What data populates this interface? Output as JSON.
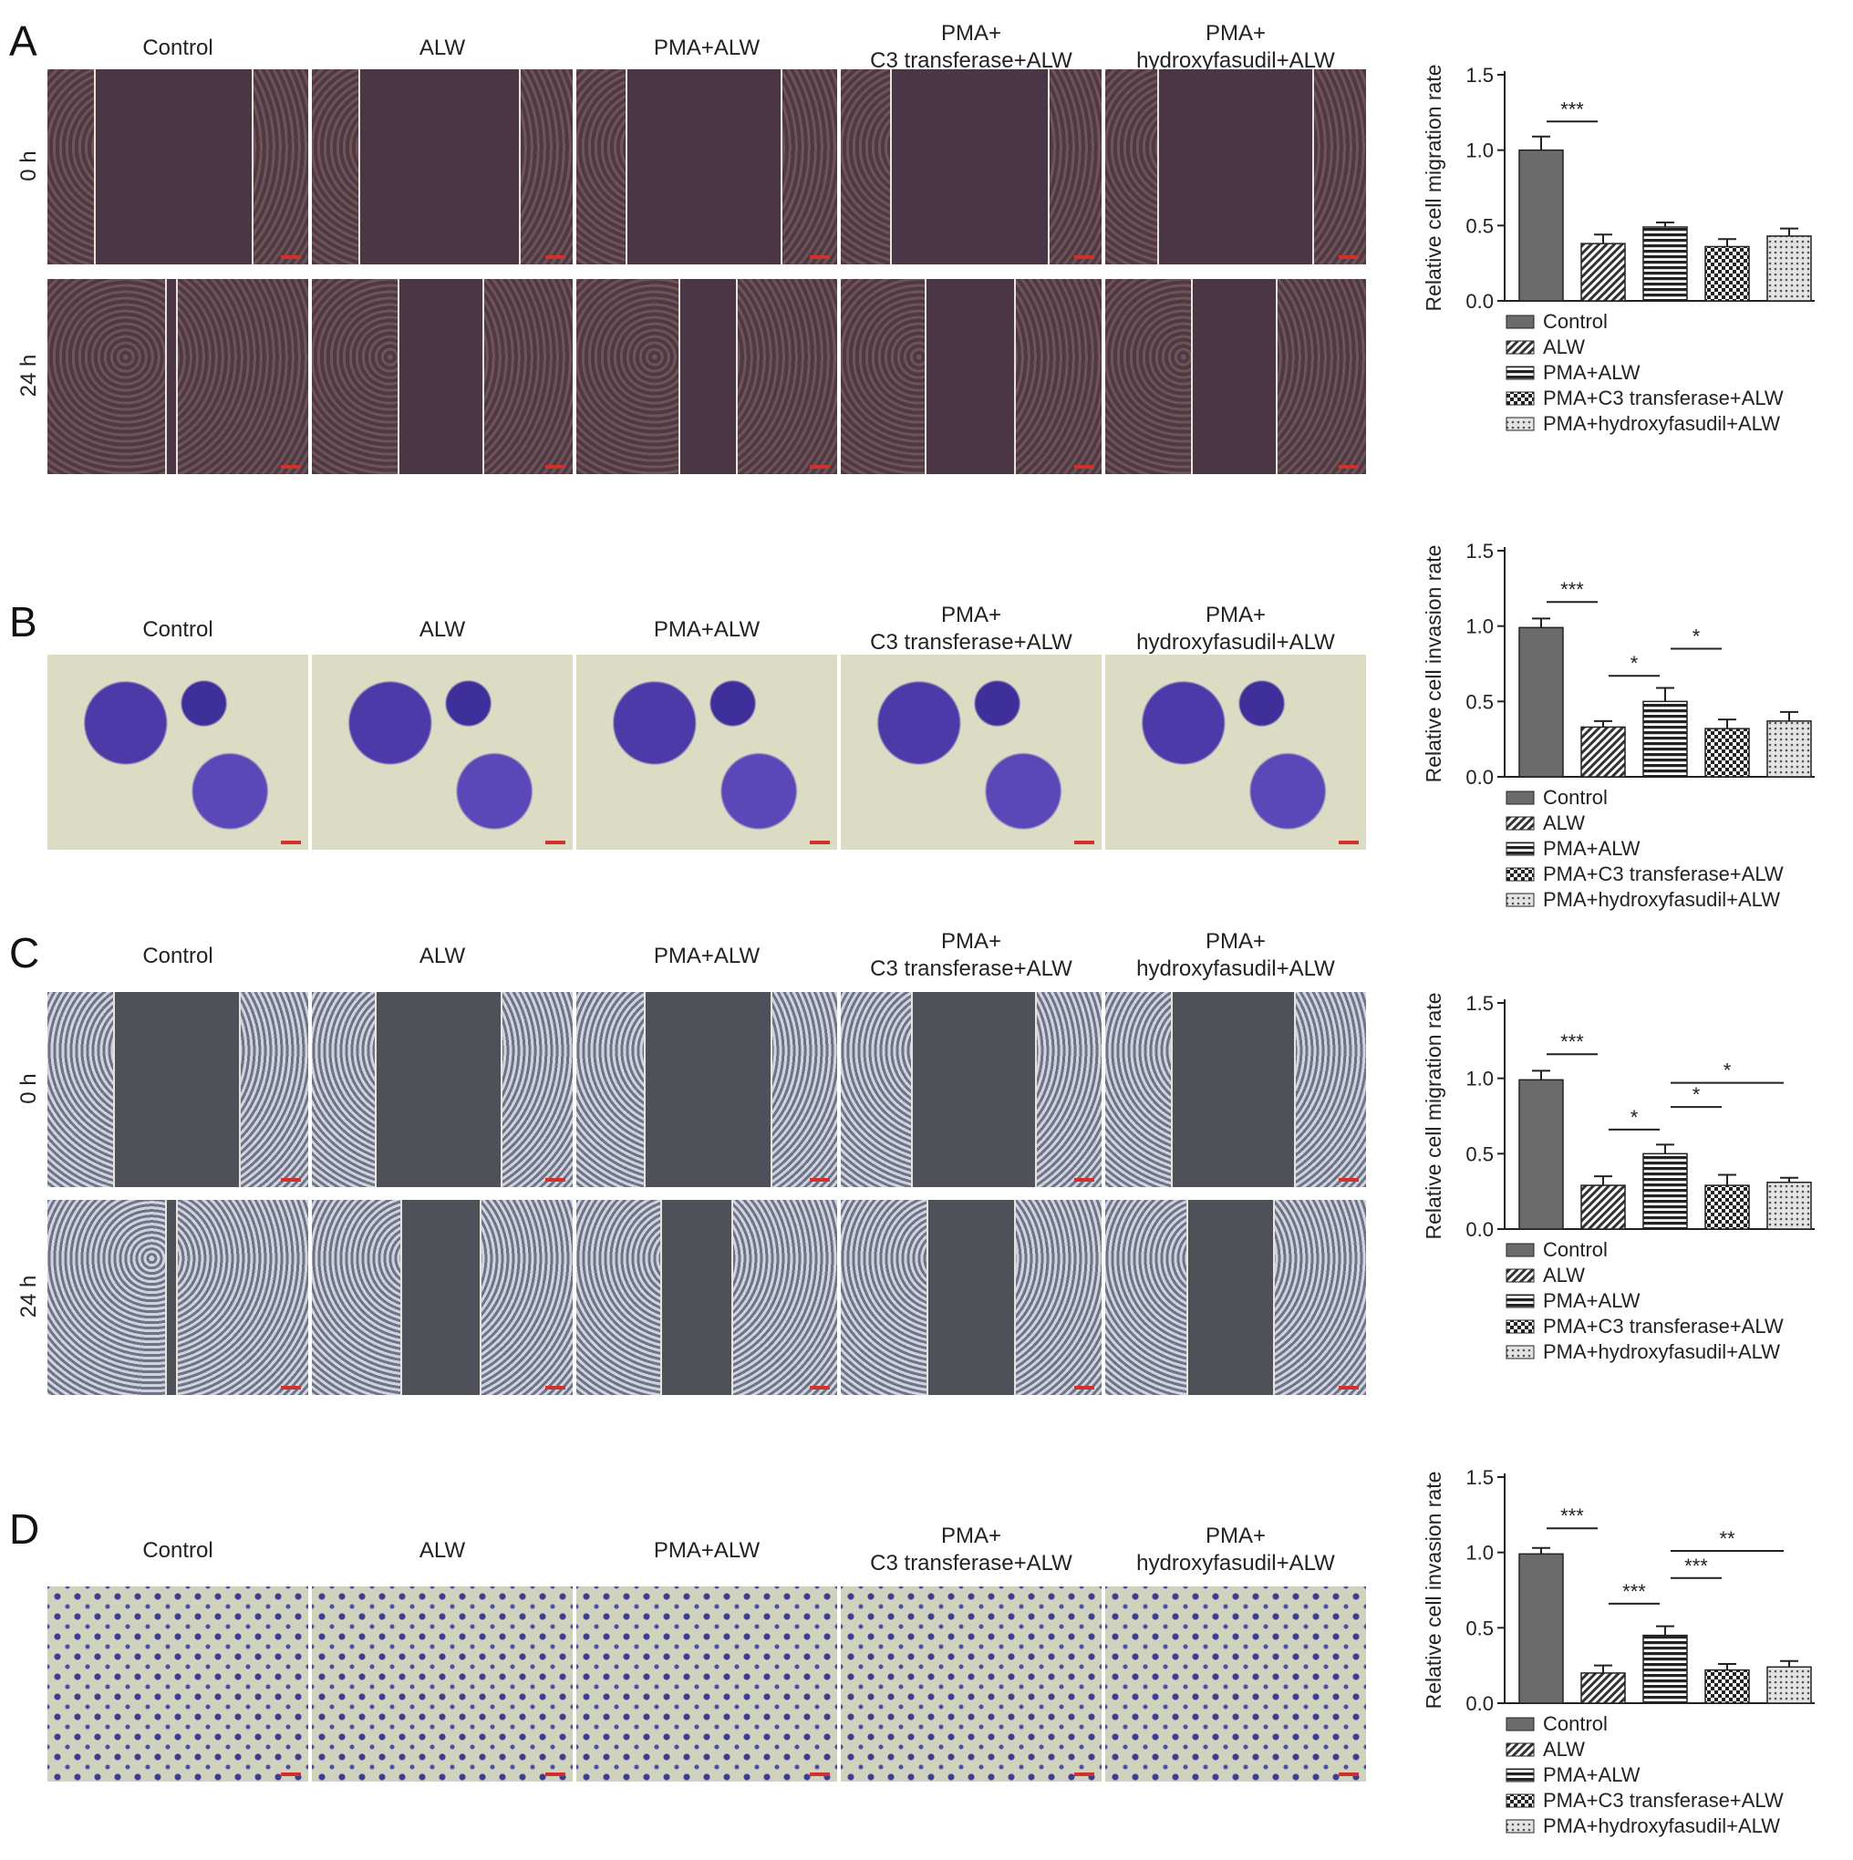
{
  "figure": {
    "columns": [
      "Control",
      "ALW",
      "PMA+ALW",
      "PMA+\nC3 transferase+ALW",
      "PMA+\nhydroxyfasudil+ALW"
    ],
    "rows_time": [
      "0 h",
      "24 h"
    ],
    "panels": [
      {
        "letter": "A",
        "kind": "wound",
        "style": "rose"
      },
      {
        "letter": "B",
        "kind": "transwell",
        "style": "violet"
      },
      {
        "letter": "C",
        "kind": "wound",
        "style": "grey"
      },
      {
        "letter": "D",
        "kind": "transwell",
        "style": "dots"
      }
    ]
  },
  "legend": [
    "Control",
    "ALW",
    "PMA+ALW",
    "PMA+C3 transferase+ALW",
    "PMA+hydroxyfasudil+ALW"
  ],
  "colors": {
    "bar_control": "#6b6b6b",
    "axis": "#222222"
  },
  "chart_data": [
    {
      "type": "bar",
      "panel": "A",
      "ylabel": "Relative cell migration rate",
      "ylim": [
        0,
        1.5
      ],
      "yticks": [
        "0.0",
        "0.5",
        "1.0",
        "1.5"
      ],
      "categories": [
        "Control",
        "ALW",
        "PMA+ALW",
        "PMA+C3 transferase+ALW",
        "PMA+hydroxyfasudil+ALW"
      ],
      "values": [
        1.0,
        0.38,
        0.49,
        0.36,
        0.43
      ],
      "errors": [
        0.09,
        0.06,
        0.03,
        0.05,
        0.05
      ],
      "significance": [
        {
          "from": 0,
          "to": 1,
          "label": "***",
          "y": 1.19
        }
      ]
    },
    {
      "type": "bar",
      "panel": "B",
      "ylabel": "Relative cell invasion rate",
      "ylim": [
        0,
        1.5
      ],
      "yticks": [
        "0.0",
        "0.5",
        "1.0",
        "1.5"
      ],
      "categories": [
        "Control",
        "ALW",
        "PMA+ALW",
        "PMA+C3 transferase+ALW",
        "PMA+hydroxyfasudil+ALW"
      ],
      "values": [
        0.99,
        0.33,
        0.5,
        0.32,
        0.37
      ],
      "errors": [
        0.06,
        0.04,
        0.09,
        0.06,
        0.06
      ],
      "significance": [
        {
          "from": 0,
          "to": 1,
          "label": "***",
          "y": 1.16
        },
        {
          "from": 1,
          "to": 2,
          "label": "*",
          "y": 0.67
        },
        {
          "from": 2,
          "to": 3,
          "label": "*",
          "y": 0.85
        }
      ]
    },
    {
      "type": "bar",
      "panel": "C",
      "ylabel": "Relative cell migration rate",
      "ylim": [
        0,
        1.5
      ],
      "yticks": [
        "0.0",
        "0.5",
        "1.0",
        "1.5"
      ],
      "categories": [
        "Control",
        "ALW",
        "PMA+ALW",
        "PMA+C3 transferase+ALW",
        "PMA+hydroxyfasudil+ALW"
      ],
      "values": [
        0.99,
        0.29,
        0.5,
        0.29,
        0.31
      ],
      "errors": [
        0.06,
        0.06,
        0.06,
        0.07,
        0.03
      ],
      "significance": [
        {
          "from": 0,
          "to": 1,
          "label": "***",
          "y": 1.16
        },
        {
          "from": 1,
          "to": 2,
          "label": "*",
          "y": 0.66
        },
        {
          "from": 2,
          "to": 3,
          "label": "*",
          "y": 0.81
        },
        {
          "from": 2,
          "to": 4,
          "label": "*",
          "y": 0.97
        }
      ]
    },
    {
      "type": "bar",
      "panel": "D",
      "ylabel": "Relative cell invasion rate",
      "ylim": [
        0,
        1.5
      ],
      "yticks": [
        "0.0",
        "0.5",
        "1.0",
        "1.5"
      ],
      "categories": [
        "Control",
        "ALW",
        "PMA+ALW",
        "PMA+C3 transferase+ALW",
        "PMA+hydroxyfasudil+ALW"
      ],
      "values": [
        0.99,
        0.2,
        0.45,
        0.22,
        0.24
      ],
      "errors": [
        0.04,
        0.05,
        0.06,
        0.04,
        0.04
      ],
      "significance": [
        {
          "from": 0,
          "to": 1,
          "label": "***",
          "y": 1.16
        },
        {
          "from": 1,
          "to": 2,
          "label": "***",
          "y": 0.66
        },
        {
          "from": 2,
          "to": 3,
          "label": "***",
          "y": 0.83
        },
        {
          "from": 2,
          "to": 4,
          "label": "**",
          "y": 1.01
        }
      ]
    }
  ]
}
